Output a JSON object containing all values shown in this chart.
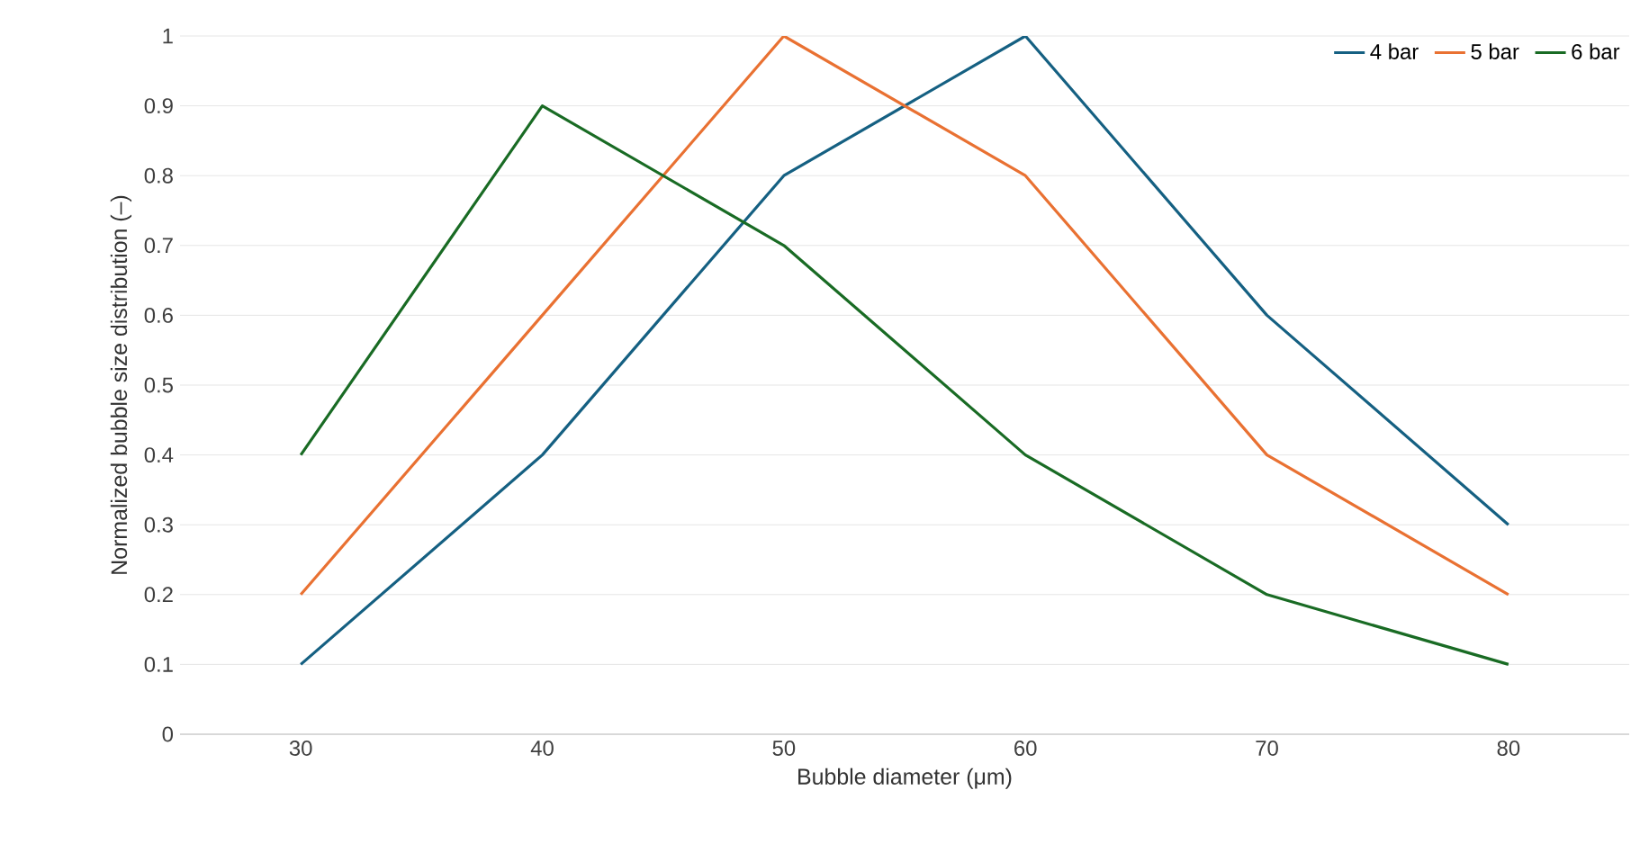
{
  "chart_data": {
    "type": "line",
    "xlabel": "Bubble diameter (μm)",
    "ylabel": "Normalized bubble size distribution (–)",
    "categories": [
      "30",
      "40",
      "50",
      "60",
      "70",
      "80"
    ],
    "series": [
      {
        "name": "4 bar",
        "color": "#156082",
        "values": [
          0.1,
          0.4,
          0.8,
          1.0,
          0.6,
          0.3
        ]
      },
      {
        "name": "5 bar",
        "color": "#e97132",
        "values": [
          0.2,
          0.6,
          1.0,
          0.8,
          0.4,
          0.2
        ]
      },
      {
        "name": "6 bar",
        "color": "#196b24",
        "values": [
          0.4,
          0.9,
          0.7,
          0.4,
          0.2,
          0.1
        ]
      }
    ],
    "ylim": [
      0,
      1
    ],
    "yticks": [
      0,
      0.1,
      0.2,
      0.3,
      0.4,
      0.5,
      0.6,
      0.7,
      0.8,
      0.9,
      1
    ],
    "grid": "y",
    "legend": "top right",
    "marker": "none",
    "line_style": "solid"
  }
}
